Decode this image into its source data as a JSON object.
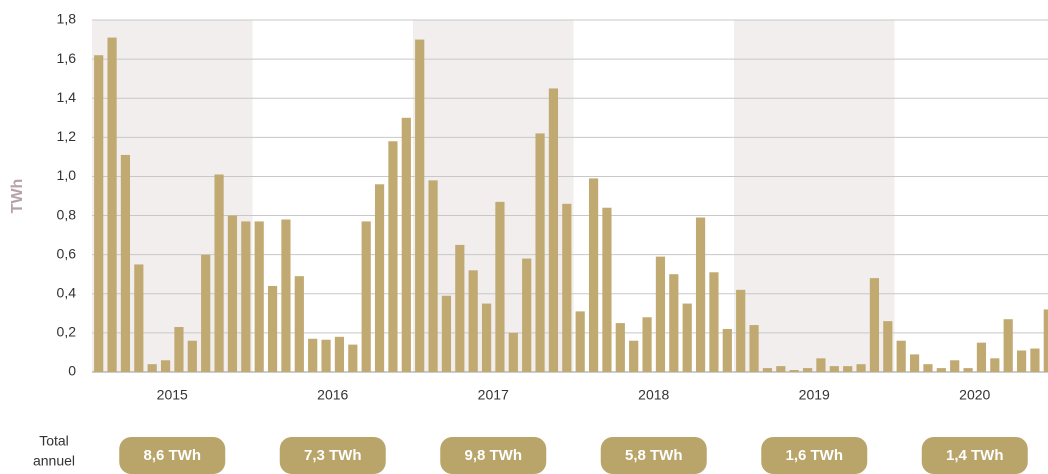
{
  "chart_data": {
    "type": "bar",
    "y_label": "TWh",
    "years": [
      "2015",
      "2016",
      "2017",
      "2018",
      "2019",
      "2020"
    ],
    "values": [
      1.62,
      1.71,
      1.11,
      0.55,
      0.04,
      0.06,
      0.23,
      0.16,
      0.6,
      1.01,
      0.8,
      0.77,
      0.77,
      0.44,
      0.78,
      0.49,
      0.17,
      0.165,
      0.18,
      0.14,
      0.77,
      0.96,
      1.18,
      1.3,
      1.7,
      0.98,
      0.39,
      0.65,
      0.52,
      0.35,
      0.87,
      0.2,
      0.58,
      1.22,
      1.45,
      0.86,
      0.31,
      0.99,
      0.84,
      0.25,
      0.16,
      0.28,
      0.59,
      0.5,
      0.35,
      0.79,
      0.51,
      0.22,
      0.42,
      0.24,
      0.02,
      0.03,
      0.01,
      0.02,
      0.07,
      0.03,
      0.03,
      0.04,
      0.48,
      0.26,
      0.16,
      0.09,
      0.04,
      0.02,
      0.06,
      0.02,
      0.15,
      0.07,
      0.27,
      0.11,
      0.12,
      0.32
    ],
    "color": "#c0aa72",
    "shade_color": "#f2eeee",
    "ylim": [
      0,
      1.8
    ],
    "yticks": [
      0,
      {
        "value": 0.2,
        "label": "0,2"
      },
      {
        "value": 0.4,
        "label": "0,4"
      },
      {
        "value": 0.6,
        "label": "0,6"
      },
      {
        "value": 0.8,
        "label": "0,8"
      },
      {
        "value": 1.0,
        "label": "1,0"
      },
      {
        "value": 1.2,
        "label": "1,2"
      },
      {
        "value": 1.4,
        "label": "1,4"
      },
      {
        "value": 1.6,
        "label": "1,6"
      },
      {
        "value": 1.8,
        "label": "1,8"
      }
    ],
    "grid": true,
    "totals_label": [
      "Total",
      "annuel"
    ],
    "annual_totals": [
      "8,6 TWh",
      "7,3 TWh",
      "9,8 TWh",
      "5,8 TWh",
      "1,6 TWh",
      "1,4 TWh"
    ],
    "totals_color": "#b9a46a"
  }
}
